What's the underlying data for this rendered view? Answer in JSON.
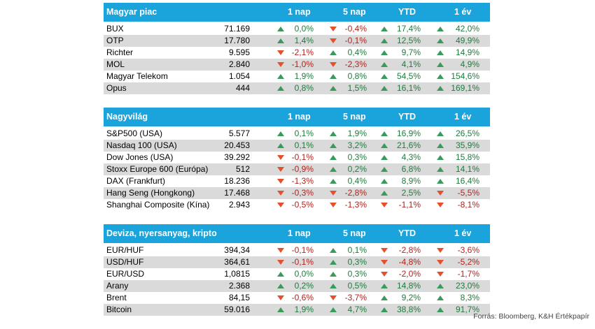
{
  "columns": [
    "1 nap",
    "5 nap",
    "YTD",
    "1 év"
  ],
  "colors": {
    "header_bg": "#1ba3db",
    "up": "#3a9a5c",
    "down": "#e2512b",
    "row_shade": "#dadada"
  },
  "sections": [
    {
      "title": "Magyar piac",
      "rows": [
        {
          "name": "BUX",
          "value": "71.169",
          "changes": [
            "0,0%",
            "-0,4%",
            "17,4%",
            "42,0%"
          ],
          "dirs": [
            "up",
            "down",
            "up",
            "up"
          ]
        },
        {
          "name": "OTP",
          "value": "17.780",
          "changes": [
            "1,4%",
            "-0,1%",
            "12,5%",
            "49,9%"
          ],
          "dirs": [
            "up",
            "down",
            "up",
            "up"
          ]
        },
        {
          "name": "Richter",
          "value": "9.595",
          "changes": [
            "-2,1%",
            "0,4%",
            "9,7%",
            "14,9%"
          ],
          "dirs": [
            "down",
            "up",
            "up",
            "up"
          ]
        },
        {
          "name": "MOL",
          "value": "2.840",
          "changes": [
            "-1,0%",
            "-2,3%",
            "4,1%",
            "4,9%"
          ],
          "dirs": [
            "down",
            "down",
            "up",
            "up"
          ]
        },
        {
          "name": "Magyar Telekom",
          "value": "1.054",
          "changes": [
            "1,9%",
            "0,8%",
            "54,5%",
            "154,6%"
          ],
          "dirs": [
            "up",
            "up",
            "up",
            "up"
          ]
        },
        {
          "name": "Opus",
          "value": "444",
          "changes": [
            "0,8%",
            "1,5%",
            "16,1%",
            "169,1%"
          ],
          "dirs": [
            "up",
            "up",
            "up",
            "up"
          ]
        }
      ]
    },
    {
      "title": "Nagyvilág",
      "rows": [
        {
          "name": "S&P500 (USA)",
          "value": "5.577",
          "changes": [
            "0,1%",
            "1,9%",
            "16,9%",
            "26,5%"
          ],
          "dirs": [
            "up",
            "up",
            "up",
            "up"
          ]
        },
        {
          "name": "Nasdaq 100 (USA)",
          "value": "20.453",
          "changes": [
            "0,1%",
            "3,2%",
            "21,6%",
            "35,9%"
          ],
          "dirs": [
            "up",
            "up",
            "up",
            "up"
          ]
        },
        {
          "name": "Dow Jones (USA)",
          "value": "39.292",
          "changes": [
            "-0,1%",
            "0,3%",
            "4,3%",
            "15,8%"
          ],
          "dirs": [
            "down",
            "up",
            "up",
            "up"
          ]
        },
        {
          "name": "Stoxx Europe 600 (Európa)",
          "value": "512",
          "changes": [
            "-0,9%",
            "0,2%",
            "6,8%",
            "14,1%"
          ],
          "dirs": [
            "down",
            "up",
            "up",
            "up"
          ]
        },
        {
          "name": "DAX (Frankfurt)",
          "value": "18.236",
          "changes": [
            "-1,3%",
            "0,4%",
            "8,9%",
            "16,4%"
          ],
          "dirs": [
            "down",
            "up",
            "up",
            "up"
          ]
        },
        {
          "name": "Hang Seng (Hongkong)",
          "value": "17.468",
          "changes": [
            "-0,3%",
            "-2,8%",
            "2,5%",
            "-5,5%"
          ],
          "dirs": [
            "down",
            "down",
            "up",
            "down"
          ]
        },
        {
          "name": "Shanghai Composite (Kína)",
          "value": "2.943",
          "changes": [
            "-0,5%",
            "-1,3%",
            "-1,1%",
            "-8,1%"
          ],
          "dirs": [
            "down",
            "down",
            "down",
            "down"
          ]
        }
      ]
    },
    {
      "title": "Deviza, nyersanyag, kripto",
      "rows": [
        {
          "name": "EUR/HUF",
          "value": "394,34",
          "changes": [
            "-0,1%",
            "0,1%",
            "-2,8%",
            "-3,6%"
          ],
          "dirs": [
            "down",
            "up",
            "down",
            "down"
          ]
        },
        {
          "name": "USD/HUF",
          "value": "364,61",
          "changes": [
            "-0,1%",
            "0,3%",
            "-4,8%",
            "-5,2%"
          ],
          "dirs": [
            "down",
            "up",
            "down",
            "down"
          ]
        },
        {
          "name": "EUR/USD",
          "value": "1,0815",
          "changes": [
            "0,0%",
            "0,3%",
            "-2,0%",
            "-1,7%"
          ],
          "dirs": [
            "up",
            "up",
            "down",
            "down"
          ]
        },
        {
          "name": "Arany",
          "value": "2.368",
          "changes": [
            "0,2%",
            "0,5%",
            "14,8%",
            "23,0%"
          ],
          "dirs": [
            "up",
            "up",
            "up",
            "up"
          ]
        },
        {
          "name": "Brent",
          "value": "84,15",
          "changes": [
            "-0,6%",
            "-3,7%",
            "9,2%",
            "8,3%"
          ],
          "dirs": [
            "down",
            "down",
            "up",
            "up"
          ]
        },
        {
          "name": "Bitcoin",
          "value": "59.016",
          "changes": [
            "1,9%",
            "4,7%",
            "38,8%",
            "91,7%"
          ],
          "dirs": [
            "up",
            "up",
            "up",
            "up"
          ]
        }
      ]
    }
  ],
  "source": "Forrás: Bloomberg, K&H Értékpapír"
}
